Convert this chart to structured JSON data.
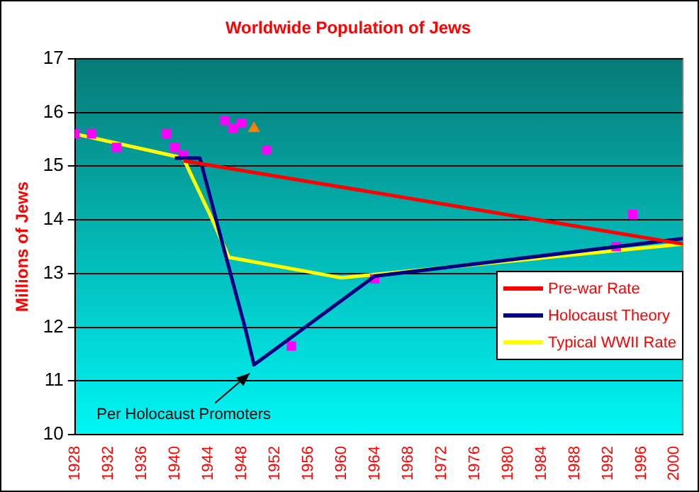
{
  "chart_data": {
    "type": "line",
    "title": "Worldwide Population of Jews",
    "ylabel": "Millions of Jews",
    "xlim": [
      1928,
      2001
    ],
    "xticks": [
      1928,
      1932,
      1936,
      1940,
      1944,
      1948,
      1952,
      1956,
      1960,
      1964,
      1968,
      1972,
      1976,
      1980,
      1984,
      1988,
      1992,
      1996,
      2000
    ],
    "ylim": [
      10,
      17
    ],
    "yticks": [
      10,
      11,
      12,
      13,
      14,
      15,
      16,
      17
    ],
    "grid": "y",
    "legend": "bottom right",
    "marker": "none",
    "line_style": "solid",
    "series": [
      {
        "name": "Pre-war Rate",
        "color": "#ff0000",
        "x": [
          1941,
          2001
        ],
        "values": [
          15.1,
          13.55
        ]
      },
      {
        "name": "Holocaust Theory",
        "color": "#000080",
        "x": [
          1940,
          1943,
          1946.5,
          1948.5,
          1949.5,
          1964,
          2001
        ],
        "values": [
          15.15,
          15.15,
          13.1,
          11.95,
          11.3,
          12.95,
          13.65
        ]
      },
      {
        "type": "scatter",
        "marker": "square",
        "color": "#ff00ff",
        "x": [
          1928,
          1930,
          1933,
          1939,
          1940,
          1941,
          1946,
          1947,
          1948,
          1951,
          1954,
          1964,
          1993,
          1995
        ],
        "values": [
          15.6,
          15.6,
          15.35,
          15.6,
          15.35,
          15.2,
          15.85,
          15.7,
          15.8,
          15.3,
          11.65,
          12.9,
          13.5,
          14.1
        ]
      },
      {
        "type": "scatter",
        "marker": "triangle",
        "color": "#ff8000",
        "x": [
          1949.5
        ],
        "values": [
          15.7
        ]
      },
      {
        "name": "Typical WWII Rate",
        "color": "#ffff00",
        "x": [
          1928,
          1941,
          1944.5,
          1946.5,
          1960,
          2001
        ],
        "values": [
          15.6,
          15.15,
          14.0,
          13.3,
          12.92,
          13.55
        ]
      }
    ],
    "annotations": [
      {
        "text": "Per Holocaust Promoters",
        "x": 1949.5,
        "y": 11.3
      }
    ]
  }
}
